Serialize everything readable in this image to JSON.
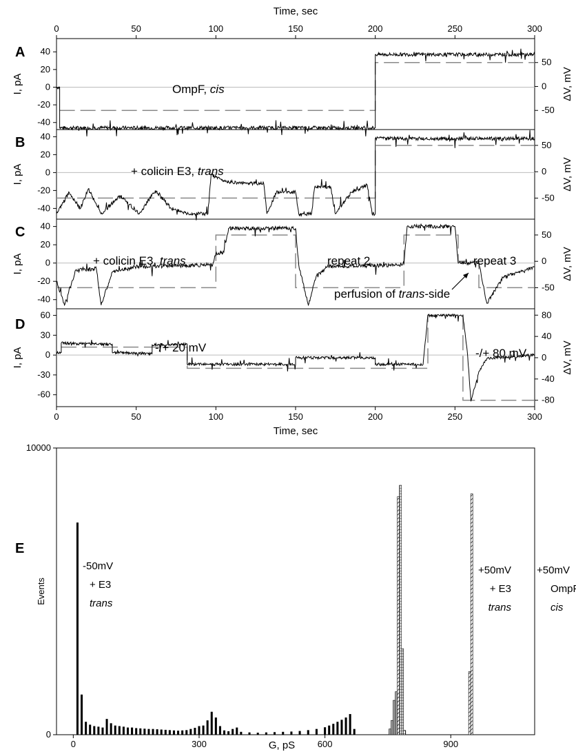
{
  "chart_data": [
    {
      "panel": "A",
      "type": "line",
      "title": "",
      "top_axis_title": "Time, sec",
      "xlabel": "",
      "ylabel": "I, pA",
      "y2label": "ΔV, mV",
      "xlim": [
        0,
        300
      ],
      "ylim": [
        -48,
        55
      ],
      "y2lim": [
        -90,
        100
      ],
      "x_ticks": [
        0,
        50,
        100,
        150,
        200,
        250,
        300
      ],
      "y_ticks": [
        40,
        20,
        0,
        -20,
        -40
      ],
      "y2_ticks": [
        50,
        0,
        -50
      ],
      "annotations": [
        {
          "text": "OmpF, ",
          "italic": "cis"
        }
      ],
      "series": [
        {
          "style": "current trace",
          "points": [
            [
              0,
              0
            ],
            [
              2,
              0
            ],
            [
              2,
              -46
            ],
            [
              200,
              -46
            ],
            [
              200,
              37
            ],
            [
              300,
              37
            ]
          ]
        },
        {
          "style": "voltage dashed",
          "points": [
            [
              2,
              -50
            ],
            [
              200,
              -50
            ],
            [
              200,
              50
            ],
            [
              300,
              50
            ]
          ]
        }
      ]
    },
    {
      "panel": "B",
      "type": "line",
      "title": "",
      "xlabel": "",
      "ylabel": "I, pA",
      "y2label": "ΔV, mV",
      "xlim": [
        0,
        300
      ],
      "ylim": [
        -52,
        48
      ],
      "y2lim": [
        -90,
        80
      ],
      "y_ticks": [
        40,
        20,
        0,
        -20,
        -40
      ],
      "y2_ticks": [
        50,
        0,
        -50
      ],
      "annotations": [
        {
          "text": "+ colicin E3, ",
          "italic": "trans"
        }
      ],
      "series": [
        {
          "style": "current trace",
          "points": [
            [
              0,
              -46
            ],
            [
              8,
              -22
            ],
            [
              15,
              -40
            ],
            [
              20,
              -18
            ],
            [
              28,
              -46
            ],
            [
              40,
              -26
            ],
            [
              52,
              -46
            ],
            [
              62,
              -20
            ],
            [
              72,
              -40
            ],
            [
              82,
              -46
            ],
            [
              95,
              -46
            ],
            [
              97,
              -2
            ],
            [
              105,
              -10
            ],
            [
              120,
              -12
            ],
            [
              130,
              -12
            ],
            [
              132,
              -46
            ],
            [
              138,
              -22
            ],
            [
              150,
              -22
            ],
            [
              152,
              -46
            ],
            [
              160,
              -46
            ],
            [
              162,
              -16
            ],
            [
              172,
              -16
            ],
            [
              175,
              -46
            ],
            [
              185,
              -22
            ],
            [
              195,
              -14
            ],
            [
              198,
              -46
            ],
            [
              200,
              -46
            ],
            [
              200,
              38
            ],
            [
              300,
              38
            ]
          ]
        },
        {
          "style": "voltage dashed",
          "points": [
            [
              0,
              -50
            ],
            [
              200,
              -50
            ],
            [
              200,
              50
            ],
            [
              300,
              50
            ]
          ]
        }
      ]
    },
    {
      "panel": "C",
      "type": "line",
      "title": "",
      "xlabel": "",
      "ylabel": "I, pA",
      "y2label": "ΔV, mV",
      "xlim": [
        0,
        300
      ],
      "ylim": [
        -50,
        48
      ],
      "y2lim": [
        -90,
        80
      ],
      "y_ticks": [
        40,
        20,
        0,
        -20,
        -40
      ],
      "y2_ticks": [
        50,
        0,
        -50
      ],
      "annotations": [
        {
          "text": "+ colicin E3, ",
          "italic": "trans"
        },
        {
          "text": "repeat 2"
        },
        {
          "text": "repeat 3"
        },
        {
          "text": "perfusion of ",
          "italic": "trans",
          "suffix": "-side"
        }
      ],
      "series": [
        {
          "style": "current trace",
          "points": [
            [
              0,
              -20
            ],
            [
              5,
              -46
            ],
            [
              12,
              -8
            ],
            [
              25,
              -6
            ],
            [
              28,
              -46
            ],
            [
              35,
              -10
            ],
            [
              50,
              -4
            ],
            [
              98,
              -2
            ],
            [
              100,
              10
            ],
            [
              105,
              12
            ],
            [
              108,
              38
            ],
            [
              150,
              38
            ],
            [
              152,
              -2
            ],
            [
              158,
              -46
            ],
            [
              163,
              -14
            ],
            [
              170,
              -4
            ],
            [
              215,
              -2
            ],
            [
              218,
              0
            ],
            [
              220,
              40
            ],
            [
              250,
              40
            ],
            [
              252,
              0
            ],
            [
              265,
              0
            ],
            [
              270,
              -44
            ],
            [
              280,
              -16
            ],
            [
              300,
              -4
            ]
          ]
        },
        {
          "style": "voltage dashed",
          "points": [
            [
              0,
              -50
            ],
            [
              100,
              -50
            ],
            [
              100,
              50
            ],
            [
              150,
              50
            ],
            [
              150,
              -50
            ],
            [
              218,
              -50
            ],
            [
              218,
              50
            ],
            [
              252,
              50
            ],
            [
              252,
              0
            ],
            [
              265,
              0
            ],
            [
              265,
              -50
            ],
            [
              300,
              -50
            ]
          ]
        }
      ]
    },
    {
      "panel": "D",
      "type": "line",
      "title": "",
      "xlabel": "Time, sec",
      "ylabel": "I, pA",
      "y2label": "ΔV, mV",
      "xlim": [
        0,
        300
      ],
      "ylim": [
        -78,
        70
      ],
      "y2lim": [
        -92,
        92
      ],
      "x_ticks": [
        0,
        50,
        100,
        150,
        200,
        250,
        300
      ],
      "y_ticks": [
        60,
        30,
        0,
        -30,
        -60
      ],
      "y2_ticks": [
        80,
        40,
        0,
        -40,
        -80
      ],
      "annotations": [
        {
          "text": "-/+ 20 mV"
        },
        {
          "text": "-/+ 80 mV"
        }
      ],
      "series": [
        {
          "style": "current trace",
          "points": [
            [
              0,
              4
            ],
            [
              3,
              4
            ],
            [
              3,
              18
            ],
            [
              35,
              16
            ],
            [
              35,
              4
            ],
            [
              60,
              2
            ],
            [
              60,
              16
            ],
            [
              82,
              16
            ],
            [
              82,
              -14
            ],
            [
              150,
              -14
            ],
            [
              150,
              -4
            ],
            [
              200,
              -4
            ],
            [
              200,
              -14
            ],
            [
              230,
              -14
            ],
            [
              233,
              60
            ],
            [
              255,
              60
            ],
            [
              258,
              -2
            ],
            [
              260,
              -70
            ],
            [
              265,
              -25
            ],
            [
              270,
              -5
            ],
            [
              300,
              0
            ]
          ]
        },
        {
          "style": "voltage dashed",
          "points": [
            [
              3,
              20
            ],
            [
              82,
              20
            ],
            [
              82,
              -20
            ],
            [
              233,
              -20
            ],
            [
              233,
              80
            ],
            [
              255,
              80
            ],
            [
              255,
              -80
            ],
            [
              300,
              -80
            ]
          ]
        }
      ]
    },
    {
      "panel": "E",
      "type": "bar",
      "title": "",
      "xlabel": "G, pS",
      "ylabel": "Events",
      "xlim": [
        -40,
        1100
      ],
      "ylim": [
        0,
        10000
      ],
      "x_ticks": [
        0,
        300,
        600,
        900
      ],
      "y_ticks": [
        0,
        10000
      ],
      "annotations": [
        {
          "lines": [
            "-50mV",
            "+ E3",
            "trans"
          ],
          "italic_last": true
        },
        {
          "lines": [
            "+50mV",
            "+ E3",
            "trans"
          ],
          "italic_last": true
        },
        {
          "lines": [
            "+50mV",
            "OmpF",
            "cis"
          ],
          "italic_last": true
        },
        {
          "lines": [
            "-50mV",
            "OmpF",
            "cis"
          ],
          "italic_last": true
        }
      ],
      "series": [
        {
          "style": "solid black",
          "bins": [
            [
              10,
              7400
            ],
            [
              20,
              1400
            ],
            [
              30,
              450
            ],
            [
              40,
              350
            ],
            [
              50,
              300
            ],
            [
              60,
              280
            ],
            [
              70,
              250
            ],
            [
              80,
              550
            ],
            [
              90,
              400
            ],
            [
              100,
              320
            ],
            [
              110,
              300
            ],
            [
              120,
              280
            ],
            [
              130,
              250
            ],
            [
              140,
              250
            ],
            [
              150,
              230
            ],
            [
              160,
              220
            ],
            [
              170,
              210
            ],
            [
              180,
              200
            ],
            [
              190,
              200
            ],
            [
              200,
              190
            ],
            [
              210,
              180
            ],
            [
              220,
              170
            ],
            [
              230,
              160
            ],
            [
              240,
              150
            ],
            [
              250,
              140
            ],
            [
              260,
              150
            ],
            [
              270,
              160
            ],
            [
              280,
              200
            ],
            [
              290,
              240
            ],
            [
              300,
              300
            ],
            [
              310,
              320
            ],
            [
              320,
              500
            ],
            [
              330,
              800
            ],
            [
              340,
              600
            ],
            [
              350,
              300
            ],
            [
              360,
              150
            ],
            [
              370,
              120
            ],
            [
              380,
              200
            ],
            [
              390,
              250
            ],
            [
              400,
              100
            ],
            [
              420,
              80
            ],
            [
              440,
              70
            ],
            [
              460,
              80
            ],
            [
              480,
              90
            ],
            [
              500,
              100
            ],
            [
              520,
              110
            ],
            [
              540,
              130
            ],
            [
              560,
              160
            ],
            [
              580,
              200
            ],
            [
              600,
              260
            ],
            [
              610,
              320
            ],
            [
              620,
              380
            ],
            [
              630,
              450
            ],
            [
              640,
              520
            ],
            [
              650,
              600
            ],
            [
              660,
              720
            ],
            [
              670,
              200
            ],
            [
              950,
              1700
            ]
          ]
        },
        {
          "style": "gray",
          "bins": [
            [
              755,
              200
            ],
            [
              760,
              500
            ],
            [
              765,
              1200
            ],
            [
              770,
              1500
            ]
          ]
        },
        {
          "style": "hatched",
          "bins": [
            [
              775,
              8300
            ],
            [
              945,
              2200
            ],
            [
              950,
              8400
            ]
          ]
        },
        {
          "style": "checkered",
          "bins": [
            [
              780,
              8700
            ],
            [
              785,
              3000
            ],
            [
              790,
              150
            ]
          ]
        }
      ]
    }
  ]
}
